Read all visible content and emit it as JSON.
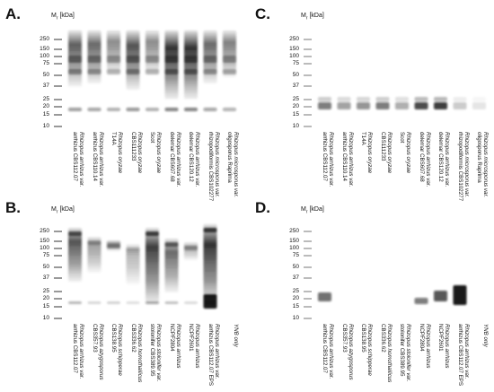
{
  "figure": {
    "mw_label": "M",
    "mw_sub": "r",
    "mw_unit": " [kDa]",
    "markers": [
      "250",
      "150",
      "100",
      "75",
      "50",
      "37",
      "25",
      "20",
      "15",
      "10"
    ],
    "panels": [
      {
        "id": "A",
        "letter": "A.",
        "lanes": [
          [
            "Rhizopus arrhizus var.",
            "arrhizus CBS112.07"
          ],
          [
            "Rhizopus arrhizus var.",
            "arrhizus CBS110.14"
          ],
          [
            "Rhizopus oryzae",
            "T14A"
          ],
          [
            "Rhizopus oryzae",
            "CBS111233"
          ],
          [
            "Rhizopus oryzae",
            "Scot"
          ],
          [
            "Rhizopus arrhizus var.",
            "delemar CBS607.68"
          ],
          [
            "Rhizopus arrhizus var.",
            "delemar CBS120.12"
          ],
          [
            "Rhizopus microsporus var.",
            "rhizopodiformis CBS102277"
          ],
          [
            "Rhizopus microsporus var.",
            "oligosporus Raprima"
          ]
        ]
      },
      {
        "id": "B",
        "letter": "B.",
        "lanes": [
          [
            "Rhizopus arrhizus var.",
            "arrhizus CBS112.07"
          ],
          [
            "Rhizopus azygosporus",
            "CBS357.93"
          ],
          [
            "Rhizopus schipperae",
            "CBS138.95"
          ],
          [
            "Rhizopus homothallicus",
            "CBS336.62"
          ],
          [
            "Rhizopus stolonifer var.",
            "stolonifer CBS389.95"
          ],
          [
            "Rhizopus arrhizus",
            "NCPF2804"
          ],
          [
            "Rhizopus arrhizus",
            "NCPF2601"
          ],
          [
            "Rhizopus arrhizus var.",
            "arrhizus CBS112.07 EPS"
          ],
          [
            "YNB only",
            ""
          ]
        ]
      },
      {
        "id": "C",
        "letter": "C.",
        "lanes": [
          [
            "Rhizopus arrhizus var.",
            "arrhizus CBS112.07"
          ],
          [
            "Rhizopus arrhizus var.",
            "arrhizus CBS110.14"
          ],
          [
            "Rhizopus oryzae",
            "T14A"
          ],
          [
            "Rhizopus oryzae",
            "CBS111233"
          ],
          [
            "Rhizopus oryzae",
            "Scot"
          ],
          [
            "Rhizopus arrhizus var.",
            "delemar CBS607.68"
          ],
          [
            "Rhizopus arrhizus var.",
            "delemar CBS120.12"
          ],
          [
            "Rhizopus microsporus var.",
            "rhizopodiformis CBS102277"
          ],
          [
            "Rhizopus microsporus var.",
            "oligosporus Raprima"
          ]
        ]
      },
      {
        "id": "D",
        "letter": "D.",
        "lanes": [
          [
            "Rhizopus arrhizus var.",
            "arrhizus CBS112.07"
          ],
          [
            "Rhizopus azygosporus",
            "CBS357.93"
          ],
          [
            "Rhizopus schipperae",
            "CBS138.95"
          ],
          [
            "Rhizopus homothallicus",
            "CBS336.62"
          ],
          [
            "Rhizopus stolonifer var.",
            "stolonifer CBS389.95"
          ],
          [
            "Rhizopus arrhizus",
            "NCPF2804"
          ],
          [
            "Rhizopus arrhizus",
            "NCPF2601"
          ],
          [
            "Rhizopus arrhizus var.",
            "arrhizus CBS112.07 EPS"
          ],
          [
            "YNB only",
            ""
          ]
        ]
      }
    ]
  }
}
